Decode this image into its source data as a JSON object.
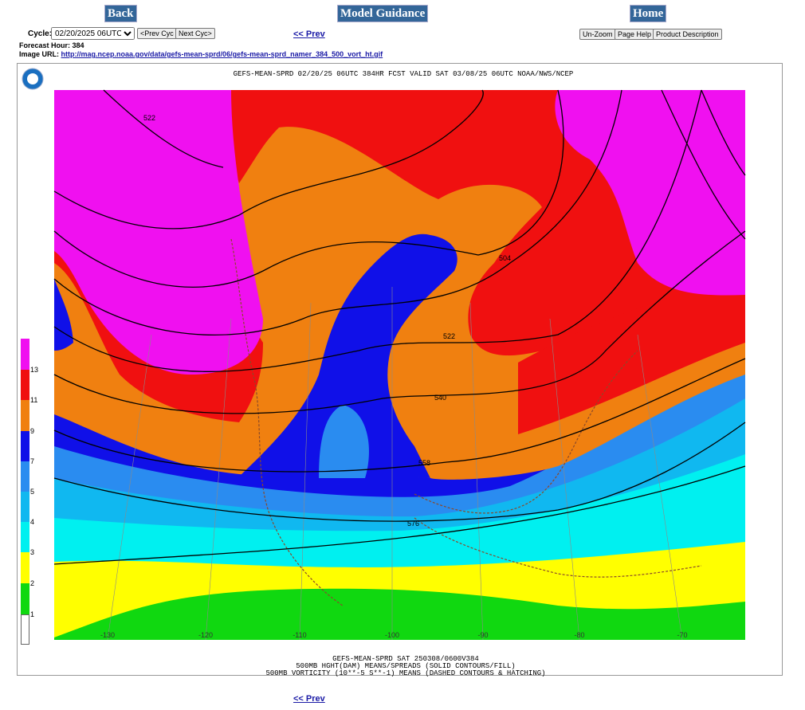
{
  "nav": {
    "back": "Back",
    "model_guidance": "Model Guidance",
    "home": "Home"
  },
  "cycle": {
    "label": "Cycle:",
    "selected": "02/20/2025 06UTC",
    "prev_cyc": "<Prev Cyc",
    "next_cyc": "Next Cyc>"
  },
  "prev_link": "<< Prev",
  "tools": {
    "unzoom": "Un-Zoom",
    "page_help": "Page Help",
    "product_description": "Product Description"
  },
  "forecast_hour": {
    "label": "Forecast Hour:",
    "value": "384"
  },
  "image_url": {
    "label": "Image URL:",
    "url": "http://mag.ncep.noaa.gov/data/gefs-mean-sprd/06/gefs-mean-sprd_namer_384_500_vort_ht.gif"
  },
  "map": {
    "title": "GEFS-MEAN-SPRD 02/20/25 06UTC 384HR FCST VALID SAT 03/08/25 06UTC NOAA/NWS/NCEP",
    "colorbar_labels": [
      "13",
      "11",
      "9",
      "7",
      "5",
      "4",
      "3",
      "2",
      "1"
    ],
    "contour_labels": [
      "522",
      "504",
      "522",
      "540",
      "558",
      "576"
    ],
    "longitude_labels": [
      "-130",
      "-120",
      "-110",
      "-100",
      "-90",
      "-80",
      "-70"
    ],
    "footer": [
      "GEFS-MEAN-SPRD SAT 250308/0600V384",
      "500MB HGHT(DAM) MEANS/SPREADS (SOLID CONTOURS/FILL)",
      "500MB VORTICITY (10**-5 S**-1) MEANS (DASHED CONTOURS & HATCHING)"
    ]
  },
  "bottom_prev_link": "<< Prev"
}
